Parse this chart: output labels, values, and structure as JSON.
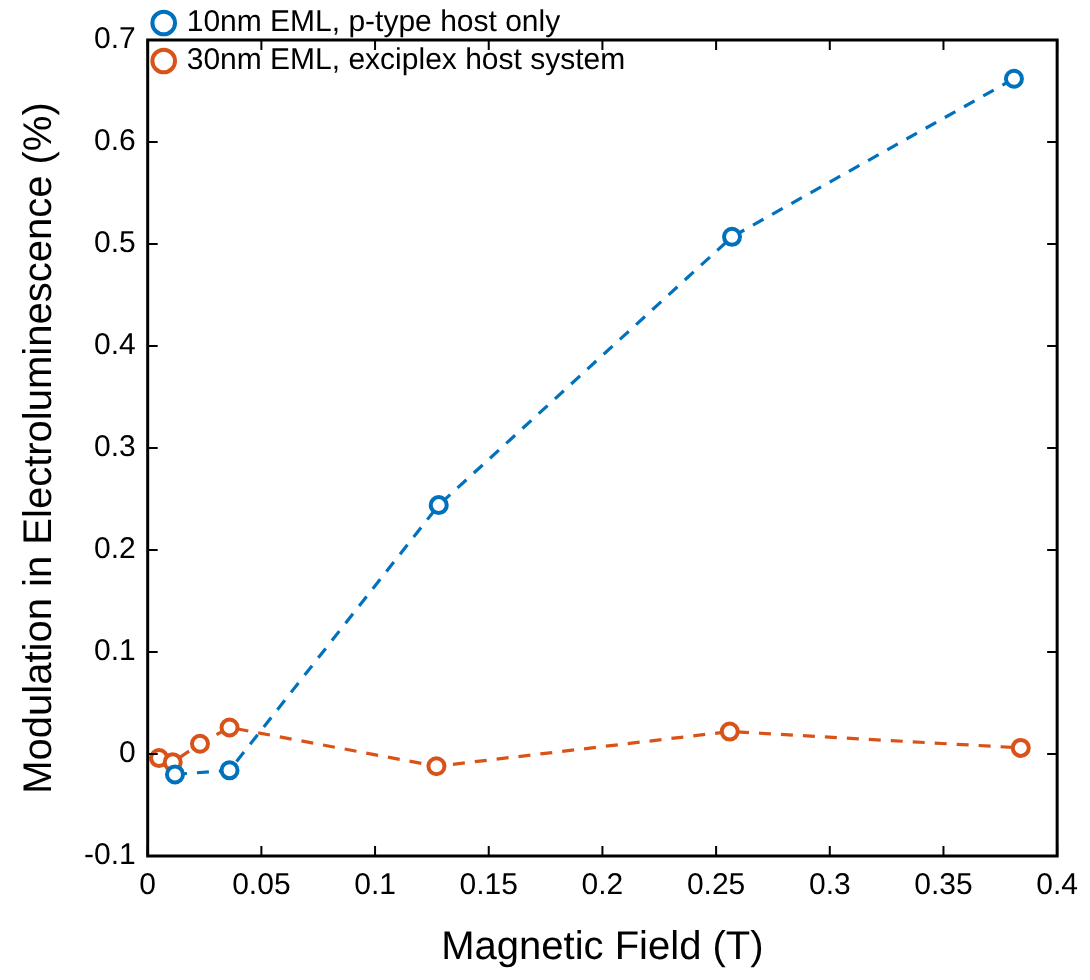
{
  "chart_data": {
    "type": "line",
    "xlabel": "Magnetic Field (T)",
    "ylabel": "Modulation in Electroluminescence (%)",
    "xlim": [
      0,
      0.4
    ],
    "xticks": [
      0,
      0.05,
      0.1,
      0.15,
      0.2,
      0.25,
      0.3,
      0.35,
      0.4
    ],
    "ylim": [
      -0.1,
      0.7
    ],
    "yticks": [
      -0.1,
      0,
      0.1,
      0.2,
      0.3,
      0.4,
      0.5,
      0.6,
      0.7
    ],
    "grid": false,
    "legend": "top left",
    "marker": "circle",
    "line_style": "dashed",
    "series": [
      {
        "name": "10nm EML, p-type host only",
        "color": "#0072bd",
        "x": [
          0.012,
          0.036,
          0.128,
          0.257,
          0.381
        ],
        "values": [
          -0.02,
          -0.016,
          0.244,
          0.507,
          0.662
        ]
      },
      {
        "name": "30nm EML, exciplex host system",
        "color": "#d95319",
        "x": [
          0.005,
          0.011,
          0.023,
          0.036,
          0.127,
          0.256,
          0.384
        ],
        "values": [
          -0.004,
          -0.008,
          0.01,
          0.026,
          -0.012,
          0.022,
          0.006
        ]
      }
    ]
  }
}
